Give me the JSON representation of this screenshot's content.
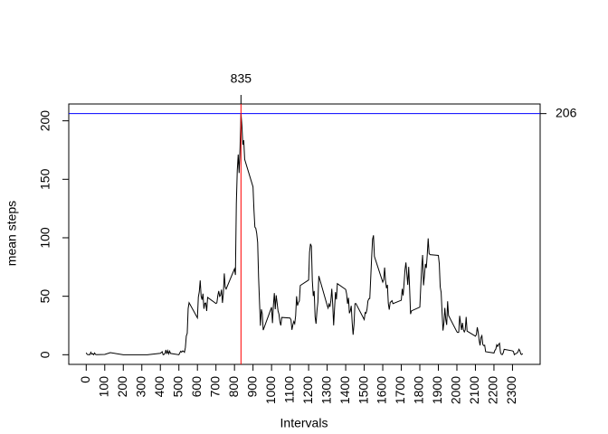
{
  "chart_data": {
    "type": "line",
    "xlabel": "Intervals",
    "ylabel": "mean steps",
    "x": [
      0,
      5,
      10,
      15,
      20,
      25,
      30,
      35,
      40,
      45,
      50,
      55,
      100,
      130,
      200,
      230,
      300,
      330,
      400,
      410,
      415,
      420,
      425,
      430,
      435,
      440,
      445,
      450,
      455,
      500,
      505,
      510,
      515,
      520,
      525,
      530,
      535,
      540,
      545,
      550,
      555,
      600,
      605,
      610,
      615,
      620,
      625,
      630,
      635,
      640,
      645,
      650,
      655,
      700,
      705,
      710,
      715,
      720,
      725,
      730,
      735,
      740,
      745,
      750,
      755,
      800,
      805,
      810,
      815,
      820,
      825,
      830,
      835,
      840,
      845,
      850,
      855,
      900,
      905,
      910,
      915,
      920,
      925,
      930,
      935,
      940,
      945,
      950,
      955,
      1000,
      1005,
      1010,
      1015,
      1020,
      1025,
      1030,
      1035,
      1040,
      1045,
      1050,
      1055,
      1100,
      1105,
      1110,
      1115,
      1120,
      1125,
      1130,
      1135,
      1140,
      1145,
      1150,
      1155,
      1200,
      1205,
      1210,
      1215,
      1220,
      1225,
      1230,
      1235,
      1240,
      1245,
      1250,
      1255,
      1300,
      1305,
      1310,
      1315,
      1320,
      1325,
      1330,
      1335,
      1340,
      1345,
      1350,
      1355,
      1400,
      1405,
      1410,
      1415,
      1420,
      1425,
      1430,
      1435,
      1440,
      1445,
      1450,
      1455,
      1500,
      1505,
      1510,
      1515,
      1520,
      1525,
      1530,
      1535,
      1540,
      1545,
      1550,
      1555,
      1600,
      1605,
      1610,
      1615,
      1620,
      1625,
      1630,
      1635,
      1640,
      1645,
      1650,
      1655,
      1700,
      1705,
      1710,
      1715,
      1720,
      1725,
      1730,
      1735,
      1740,
      1745,
      1750,
      1755,
      1800,
      1805,
      1810,
      1815,
      1820,
      1825,
      1830,
      1835,
      1840,
      1845,
      1850,
      1855,
      1900,
      1905,
      1910,
      1915,
      1920,
      1925,
      1930,
      1935,
      1940,
      1945,
      1950,
      1955,
      2000,
      2005,
      2010,
      2015,
      2020,
      2025,
      2030,
      2035,
      2040,
      2045,
      2050,
      2055,
      2100,
      2105,
      2110,
      2115,
      2120,
      2125,
      2130,
      2135,
      2140,
      2145,
      2150,
      2155,
      2200,
      2205,
      2210,
      2215,
      2220,
      2225,
      2230,
      2235,
      2240,
      2245,
      2250,
      2255,
      2300,
      2305,
      2310,
      2315,
      2320,
      2325,
      2330,
      2335,
      2340,
      2345,
      2350,
      2355
    ],
    "values": [
      1.7,
      0.3,
      0.1,
      0.2,
      0.1,
      2.1,
      0.5,
      0.9,
      0,
      1.5,
      0.3,
      0.1,
      0.3,
      1.8,
      0,
      0,
      0,
      0,
      1.2,
      2.6,
      0,
      0.3,
      1.1,
      4.1,
      0.7,
      3.5,
      0.8,
      3.1,
      1.1,
      0,
      1.6,
      3,
      2.2,
      3.3,
      3,
      2.1,
      6.1,
      16,
      18.3,
      39.5,
      44.5,
      31.5,
      49.3,
      53.8,
      63.5,
      50,
      47,
      52.2,
      39.3,
      44,
      44.2,
      37.4,
      49,
      43.8,
      44.4,
      50.5,
      54.5,
      49.9,
      50.9,
      55.7,
      44.3,
      52.3,
      69.5,
      57.8,
      56.2,
      73.4,
      68.2,
      129.4,
      157.5,
      171.2,
      155.4,
      177.3,
      206.2,
      195.9,
      179.6,
      183.4,
      167,
      143.5,
      124,
      109.1,
      108.1,
      103.7,
      96,
      66.2,
      45.2,
      24.8,
      38.8,
      35,
      21.1,
      40.6,
      27,
      42.4,
      52.7,
      38.9,
      50.8,
      44.3,
      37.4,
      34.7,
      28.3,
      25.1,
      31.9,
      31.4,
      29.7,
      21.3,
      25.5,
      28.4,
      26.5,
      33.4,
      50,
      42,
      44.6,
      46,
      59.2,
      63.9,
      87.7,
      94.8,
      92.8,
      63.4,
      50.2,
      54.5,
      32.4,
      26.5,
      37.7,
      45.1,
      67.3,
      42.3,
      39.9,
      43.3,
      41,
      46.2,
      56.4,
      42.8,
      25.1,
      39.9,
      53.5,
      47.3,
      60.8,
      55.8,
      52,
      43.6,
      48.7,
      35.5,
      37.5,
      41.8,
      27.5,
      17.1,
      26.1,
      43.6,
      43.8,
      30,
      36.1,
      35.5,
      38.8,
      46,
      47.8,
      48.1,
      65.3,
      82.9,
      98.7,
      102.1,
      84,
      62.1,
      64.1,
      74.5,
      63.2,
      56.9,
      59.8,
      43.9,
      38.6,
      44.7,
      45.5,
      46.2,
      43.7,
      46.6,
      56.3,
      50.7,
      61.2,
      72.7,
      78.9,
      68.9,
      59.7,
      75.1,
      56.5,
      34.8,
      37.5,
      40.7,
      58,
      74.7,
      85.3,
      59.3,
      67.8,
      77.7,
      74.2,
      85.3,
      99.5,
      86.6,
      85.6,
      84.9,
      77.8,
      58,
      53.4,
      36.3,
      20.7,
      27.4,
      40,
      30.2,
      25.5,
      45.7,
      33.5,
      19.6,
      19,
      19.3,
      33.3,
      26.8,
      21.2,
      27.3,
      21.3,
      19.5,
      21.3,
      32.3,
      20.2,
      15.9,
      17.2,
      23.5,
      19.2,
      12.5,
      8,
      14.7,
      16.3,
      8.7,
      7.8,
      8.1,
      2.6,
      1.5,
      3.7,
      4.8,
      8.5,
      7.1,
      8.7,
      9.75,
      2.2,
      0.3,
      0.1,
      1.6,
      4.6,
      3.3,
      2.8,
      0,
      0.8,
      0.96,
      1.6,
      2.6,
      4.7,
      3.3,
      0.6,
      0.2,
      1.1
    ],
    "color": "#000000",
    "xlim": [
      -94.2,
      2449.2
    ],
    "ylim": [
      -8.25,
      214.4
    ],
    "xticks": [
      0,
      100,
      200,
      300,
      400,
      500,
      600,
      700,
      800,
      900,
      1000,
      1100,
      1200,
      1300,
      1400,
      1500,
      1600,
      1700,
      1800,
      1900,
      2000,
      2100,
      2200,
      2300
    ],
    "yticks": [
      0,
      50,
      100,
      150,
      200
    ],
    "vline": 835,
    "vline_color": "#ff0000",
    "hline": {
      "value": 206.17,
      "label": "206"
    },
    "hline_color": "#0000ff"
  }
}
